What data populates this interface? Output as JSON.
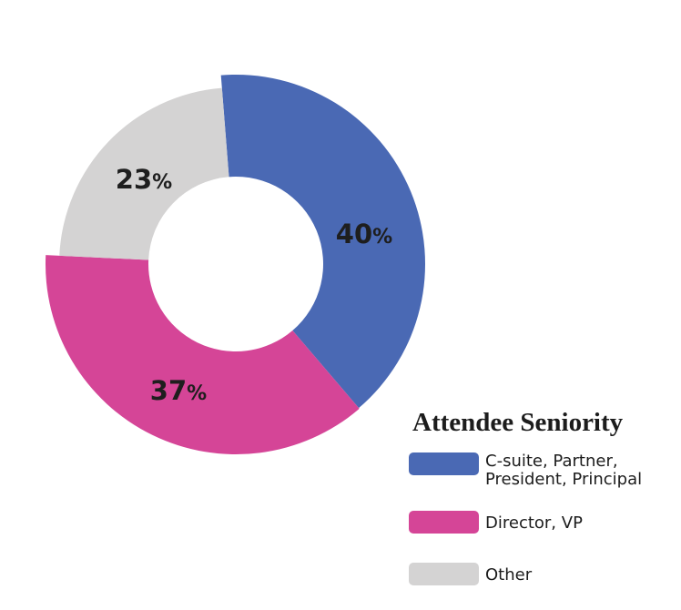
{
  "chart_data": {
    "type": "pie",
    "donut": true,
    "categories": [
      "C-suite, Partner, President, Principal",
      "Director, VP",
      "Other"
    ],
    "values": [
      40,
      37,
      23
    ],
    "unit": "%",
    "colors": [
      "#4a69b4",
      "#d54597",
      "#d4d3d3"
    ],
    "legend": {
      "title": "Attendee Seniority",
      "position": "bottom-right"
    }
  }
}
